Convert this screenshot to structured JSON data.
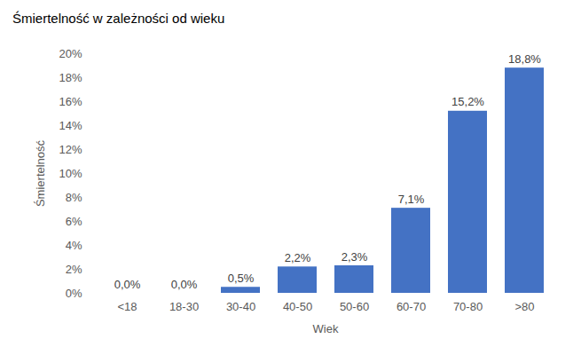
{
  "chart_data": {
    "type": "bar",
    "title": "Śmiertelność w zależności od wieku",
    "x_label": "Wiek",
    "y_label": "Śmiertelność",
    "categories": [
      "<18",
      "18-30",
      "30-40",
      "40-50",
      "50-60",
      "60-70",
      "70-80",
      ">80"
    ],
    "values": [
      0.0,
      0.0,
      0.5,
      2.2,
      2.3,
      7.1,
      15.2,
      18.8
    ],
    "value_labels": [
      "0,0%",
      "0,0%",
      "0,5%",
      "2,2%",
      "2,3%",
      "7,1%",
      "15,2%",
      "18,8%"
    ],
    "color": "#4472c4",
    "ylim": [
      0,
      20
    ],
    "yticks": [
      {
        "value": 0,
        "label": "0%"
      },
      {
        "value": 2,
        "label": "2%"
      },
      {
        "value": 4,
        "label": "4%"
      },
      {
        "value": 6,
        "label": "6%"
      },
      {
        "value": 8,
        "label": "8%"
      },
      {
        "value": 10,
        "label": "10%"
      },
      {
        "value": 12,
        "label": "12%"
      },
      {
        "value": 14,
        "label": "14%"
      },
      {
        "value": 16,
        "label": "16%"
      },
      {
        "value": 18,
        "label": "18%"
      },
      {
        "value": 20,
        "label": "20%"
      }
    ],
    "grid": false,
    "data_labels": true
  }
}
